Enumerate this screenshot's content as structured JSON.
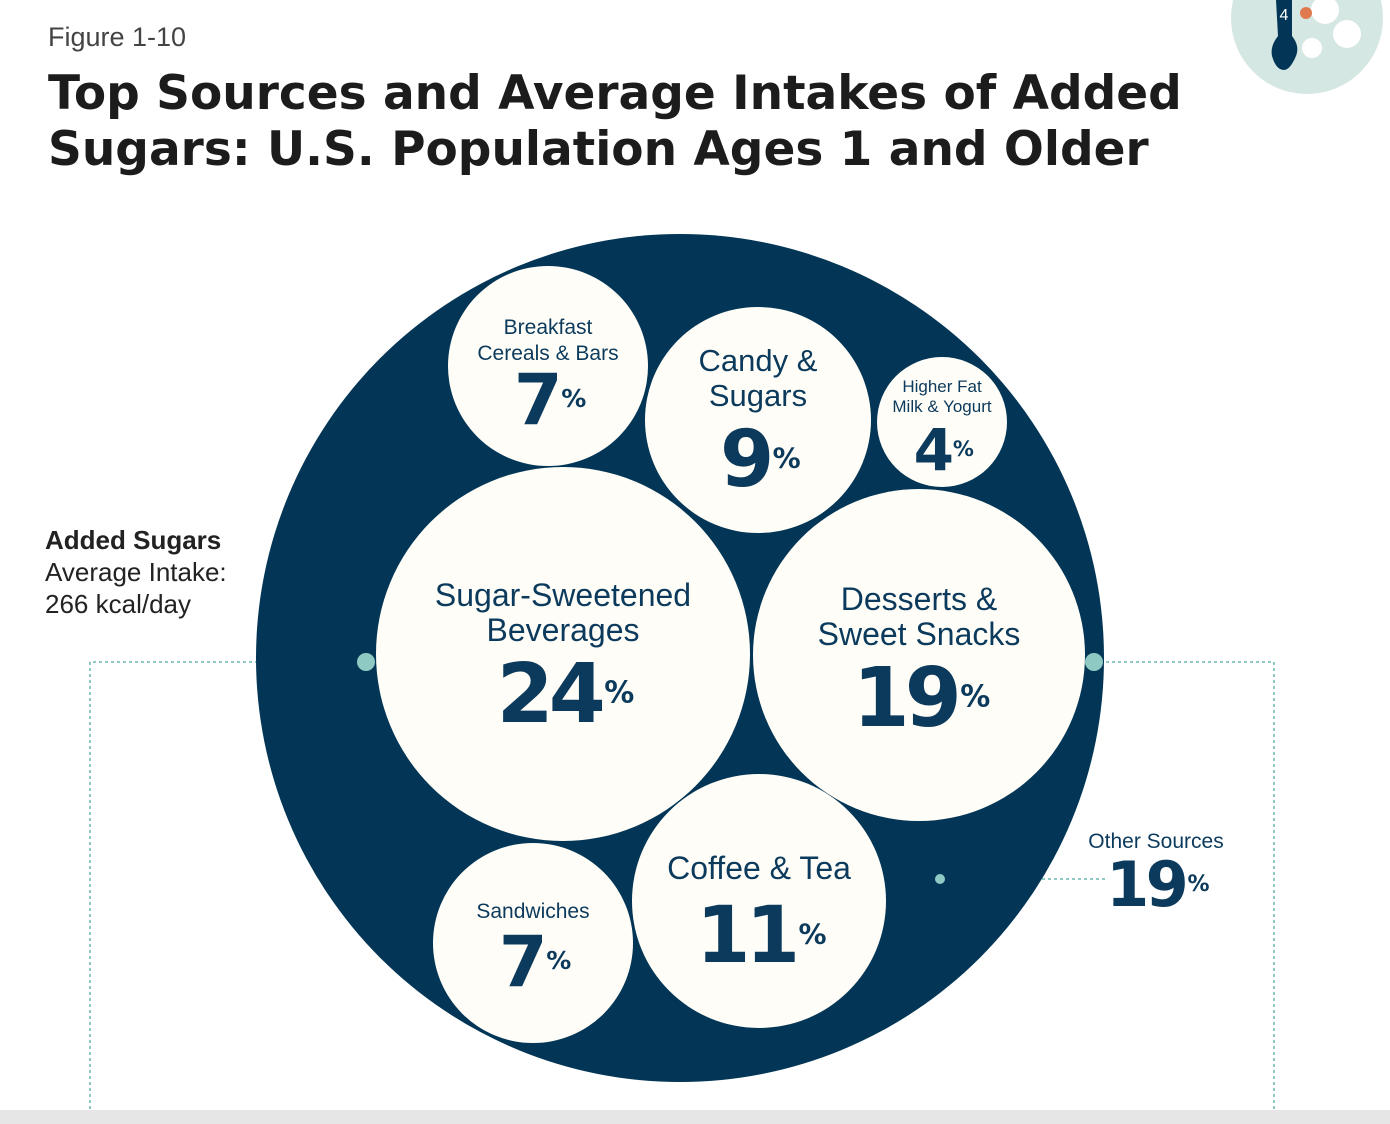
{
  "figure_label": "Figure 1-10",
  "title": "Top Sources and Average Intakes of Added Sugars: U.S. Population Ages 1 and Older",
  "intake": {
    "heading": "Added Sugars",
    "line1": "Average Intake:",
    "line2": "266 kcal/day"
  },
  "badge": {
    "number": "4"
  },
  "colors": {
    "circle_fill": "#033656",
    "bubble_fill": "#fffdf7",
    "text": "#0b3a5c",
    "connector": "#8ecac3",
    "badge_bg": "#d4e7e3",
    "badge_dot": "#e07a4e"
  },
  "chart_data": {
    "type": "bubble",
    "unit": "%",
    "total_label": "Added Sugars Average Intake: 266 kcal/day",
    "sources": [
      {
        "key": "breakfast",
        "label_lines": [
          "Breakfast",
          "Cereals & Bars"
        ],
        "value": 7
      },
      {
        "key": "candy",
        "label_lines": [
          "Candy &",
          "Sugars"
        ],
        "value": 9
      },
      {
        "key": "milk",
        "label_lines": [
          "Higher Fat",
          "Milk & Yogurt"
        ],
        "value": 4
      },
      {
        "key": "ssb",
        "label_lines": [
          "Sugar-Sweetened",
          "Beverages"
        ],
        "value": 24
      },
      {
        "key": "desserts",
        "label_lines": [
          "Desserts &",
          "Sweet Snacks"
        ],
        "value": 19
      },
      {
        "key": "sandwiches",
        "label_lines": [
          "Sandwiches"
        ],
        "value": 7
      },
      {
        "key": "coffee",
        "label_lines": [
          "Coffee & Tea"
        ],
        "value": 11
      },
      {
        "key": "other",
        "label_lines": [
          "Other Sources"
        ],
        "value": 19
      }
    ]
  }
}
